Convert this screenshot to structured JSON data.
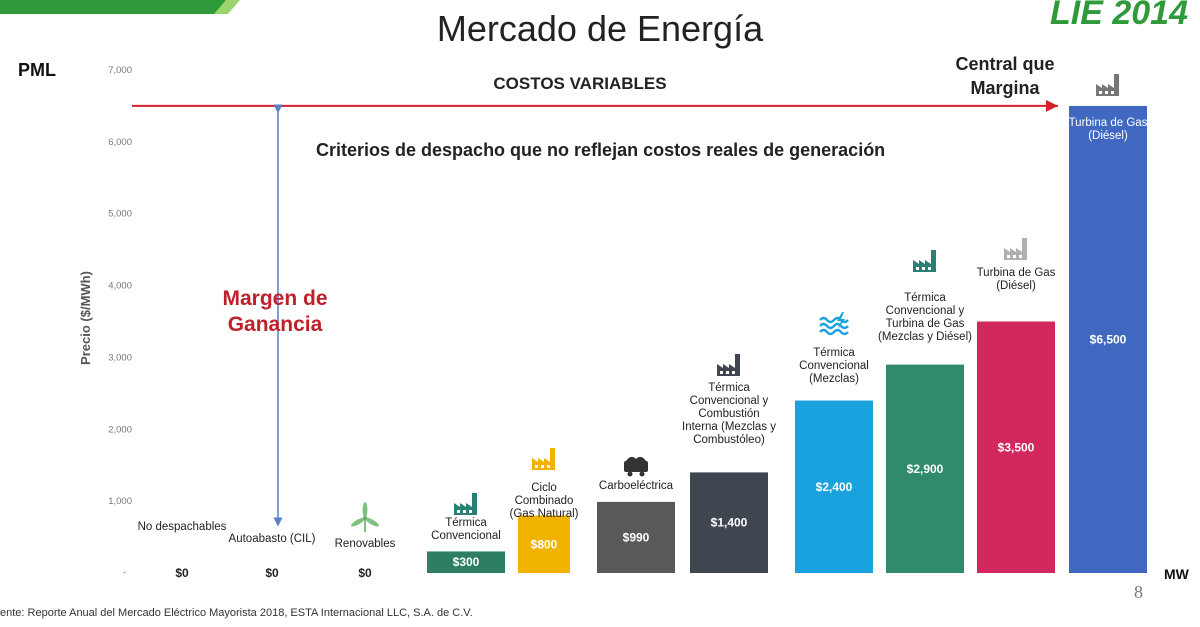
{
  "slide": {
    "title": "Mercado de Energía",
    "brand": "LIE 2014",
    "pml": "PML",
    "costos_label": "COSTOS VARIABLES",
    "central_label": "Central que Margina",
    "criterios": "Criterios de despacho que no reflejan costos reales de generación",
    "margen_label": "Margen de Ganancia",
    "x_unit": "MW",
    "page_number": "8",
    "source": "ente: Reporte Anual del Mercado Eléctrico Mayorista 2018, ESTA Internacional LLC, S.A. de C.V."
  },
  "colors": {
    "costos_line": "#d3202a",
    "margen_text": "#c0202a",
    "arrow": "#5a7fc4",
    "brand": "#2e9a3a",
    "top_stripe": "#2f9a3a",
    "icon": "#2a7f74"
  },
  "chart_data": {
    "type": "bar",
    "title": "",
    "ylabel": "Precio ($/MWh)",
    "xlabel": "MW",
    "ylim": [
      0,
      7000
    ],
    "yticks": [
      "1,000",
      "2,000",
      "3,000",
      "4,000",
      "5,000",
      "6,000",
      "7,000"
    ],
    "zero_tick": "-",
    "costos_variables_level": 6500,
    "categories": [
      "No despachables",
      "Autoabasto (CIL)",
      "Renovables",
      "Térmica Convencional",
      "Ciclo Combinado (Gas Natural)",
      "Carboeléctrica",
      "Térmica Convencional y Combustión Interna (Mezclas y Combustóleo)",
      "Térmica Convencional (Mezclas)",
      "Térmica Convencional y Turbina de Gas (Mezclas y Diésel)",
      "Turbina de Gas (Diésel)",
      "Turbina de Gas (Diésel)"
    ],
    "values": [
      0,
      0,
      0,
      300,
      800,
      990,
      1400,
      2400,
      2900,
      3500,
      6500
    ],
    "value_labels": [
      "$0",
      "$0",
      "$0",
      "$300",
      "$800",
      "$990",
      "$1,400",
      "$2,400",
      "$2,900",
      "$3,500",
      "$6,500"
    ],
    "bar_colors": [
      "",
      "",
      "",
      "#2e7f62",
      "#f1b300",
      "#595959",
      "#3f4650",
      "#1aa2df",
      "#2f8a6e",
      "#d2285e",
      "#4068c0"
    ],
    "icons": [
      "",
      "",
      "wind-turbine-icon",
      "factory-icon",
      "factory-icon",
      "coal-cart-icon",
      "factory-icon",
      "water-wave-icon",
      "factory-icon",
      "factory-icon",
      "factory-icon"
    ]
  }
}
